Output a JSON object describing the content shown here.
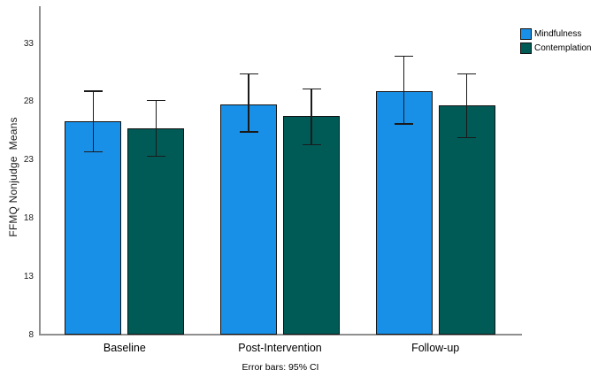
{
  "caption": "Error bars: 95% CI",
  "colors": {
    "background": "#FFFFFF",
    "axis_line": "#8F8F8F",
    "bar_border": "#121212",
    "error_bar": "#1A1A1A",
    "mindfulness_blue": "#1990E8",
    "contemplation_teal": "#005B57"
  },
  "chart_data": {
    "type": "bar",
    "title": "",
    "xlabel": "",
    "ylabel": "FFMQ Nonjudge  Means",
    "categories": [
      "Baseline",
      "Post-Intervention",
      "Follow-up"
    ],
    "series": [
      {
        "name": "Mindfulness",
        "color": "#1990E8",
        "values": [
          26.3,
          27.8,
          28.9
        ],
        "ci_low": [
          23.7,
          25.4,
          26.1
        ],
        "ci_high": [
          28.9,
          30.4,
          31.9
        ]
      },
      {
        "name": "Contemplation",
        "color": "#005B57",
        "values": [
          25.7,
          26.8,
          27.7
        ],
        "ci_low": [
          23.3,
          24.3,
          24.9
        ],
        "ci_high": [
          28.1,
          29.1,
          30.4
        ]
      }
    ],
    "yticks": [
      8,
      13,
      18,
      23,
      28,
      33
    ],
    "ylim": [
      8,
      36.2
    ],
    "error_bars_label": "95% CI",
    "legend_position": "top-right",
    "grid": false
  }
}
